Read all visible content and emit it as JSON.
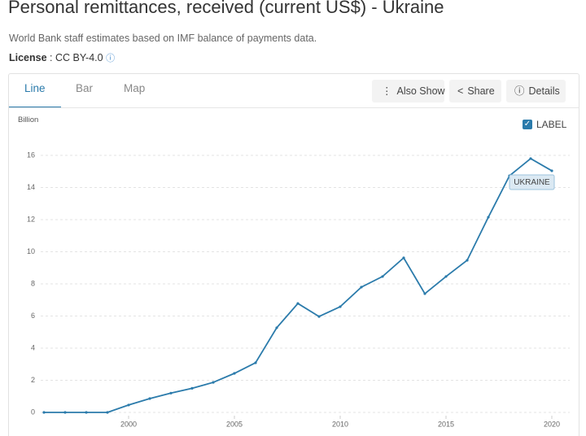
{
  "header": {
    "title": "Personal remittances, received (current US$) - Ukraine",
    "subtitle": "World Bank staff estimates based on IMF balance of payments data.",
    "license_label": "License",
    "license_value": ": CC BY-4.0"
  },
  "tabs": [
    "Line",
    "Bar",
    "Map"
  ],
  "buttons": [
    "Also Show",
    "Share",
    "Details"
  ],
  "label_toggle": "LABEL",
  "chart_data": {
    "type": "line",
    "y_unit": "Billion",
    "x": [
      1996,
      1997,
      1998,
      1999,
      2000,
      2001,
      2002,
      2003,
      2004,
      2005,
      2006,
      2007,
      2008,
      2009,
      2010,
      2011,
      2012,
      2013,
      2014,
      2015,
      2016,
      2017,
      2018,
      2019,
      2020
    ],
    "series": [
      {
        "name": "UKRAINE",
        "color": "#2b7bab",
        "values": [
          0,
          0,
          0,
          0,
          0.46,
          0.86,
          1.2,
          1.5,
          1.87,
          2.43,
          3.09,
          5.27,
          6.78,
          5.97,
          6.58,
          7.8,
          8.46,
          9.62,
          7.39,
          8.46,
          9.47,
          12.15,
          14.73,
          15.8,
          15.04
        ]
      }
    ],
    "xlim": [
      1996,
      2020.5
    ],
    "ylim": [
      0,
      16
    ],
    "xticks": [
      2000,
      2005,
      2010,
      2015,
      2020
    ],
    "yticks": [
      0,
      2,
      4,
      6,
      8,
      10,
      12,
      14,
      16
    ],
    "grid": true
  }
}
